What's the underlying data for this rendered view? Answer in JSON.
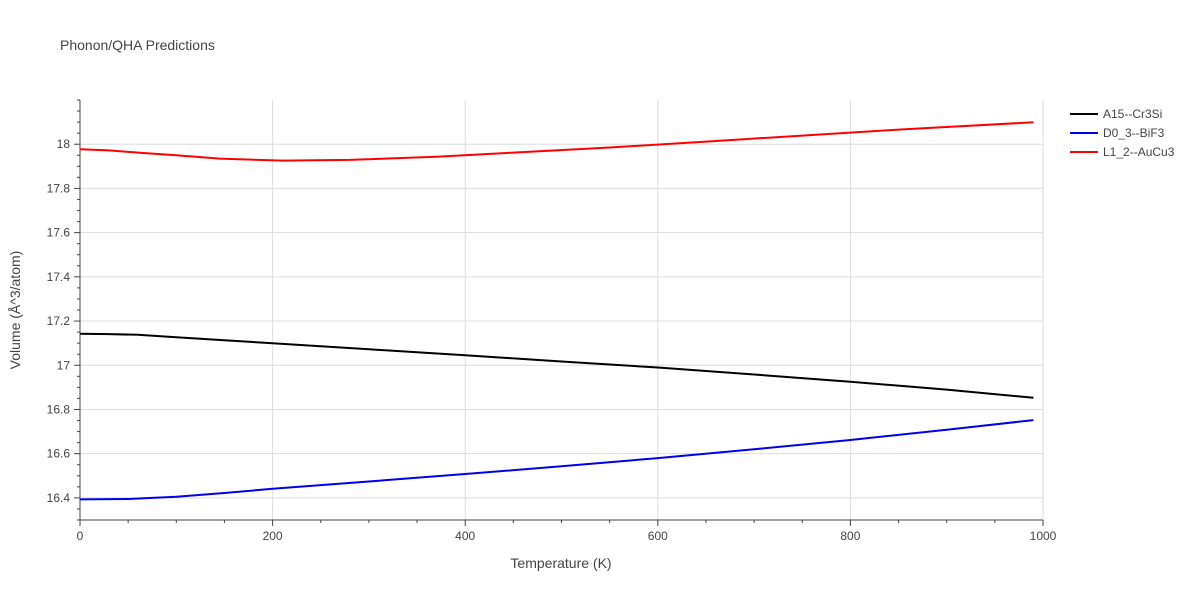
{
  "chart_data": {
    "type": "line",
    "title": "Phonon/QHA Predictions",
    "xlabel": "Temperature (K)",
    "ylabel": "Volume (Å^3/atom)",
    "xlim": [
      0,
      1000
    ],
    "ylim": [
      16.3,
      18.2
    ],
    "x_ticks": [
      0,
      200,
      400,
      600,
      800,
      1000
    ],
    "y_ticks": [
      16.4,
      16.6,
      16.8,
      17,
      17.2,
      17.4,
      17.6,
      17.8,
      18
    ],
    "grid": true,
    "legend_position": "top-right",
    "series": [
      {
        "name": "A15--Cr3Si",
        "color": "#000000",
        "x": [
          0,
          30,
          60,
          100,
          150,
          200,
          300,
          400,
          500,
          600,
          700,
          800,
          900,
          990
        ],
        "y": [
          17.143,
          17.141,
          17.138,
          17.127,
          17.113,
          17.1,
          17.072,
          17.045,
          17.017,
          16.99,
          16.958,
          16.925,
          16.89,
          16.853
        ]
      },
      {
        "name": "D0_3--BiF3",
        "color": "#0000ee",
        "x": [
          0,
          50,
          100,
          150,
          200,
          300,
          400,
          500,
          600,
          700,
          800,
          900,
          990
        ],
        "y": [
          16.393,
          16.395,
          16.405,
          16.422,
          16.441,
          16.474,
          16.508,
          16.543,
          16.58,
          16.62,
          16.662,
          16.708,
          16.752
        ]
      },
      {
        "name": "L1_2--AuCu3",
        "color": "#ff0000",
        "x": [
          0,
          30,
          60,
          100,
          145,
          210,
          280,
          370,
          450,
          550,
          650,
          750,
          850,
          990
        ],
        "y": [
          17.977,
          17.972,
          17.962,
          17.95,
          17.935,
          17.926,
          17.929,
          17.943,
          17.962,
          17.985,
          18.012,
          18.039,
          18.066,
          18.099
        ]
      }
    ]
  }
}
